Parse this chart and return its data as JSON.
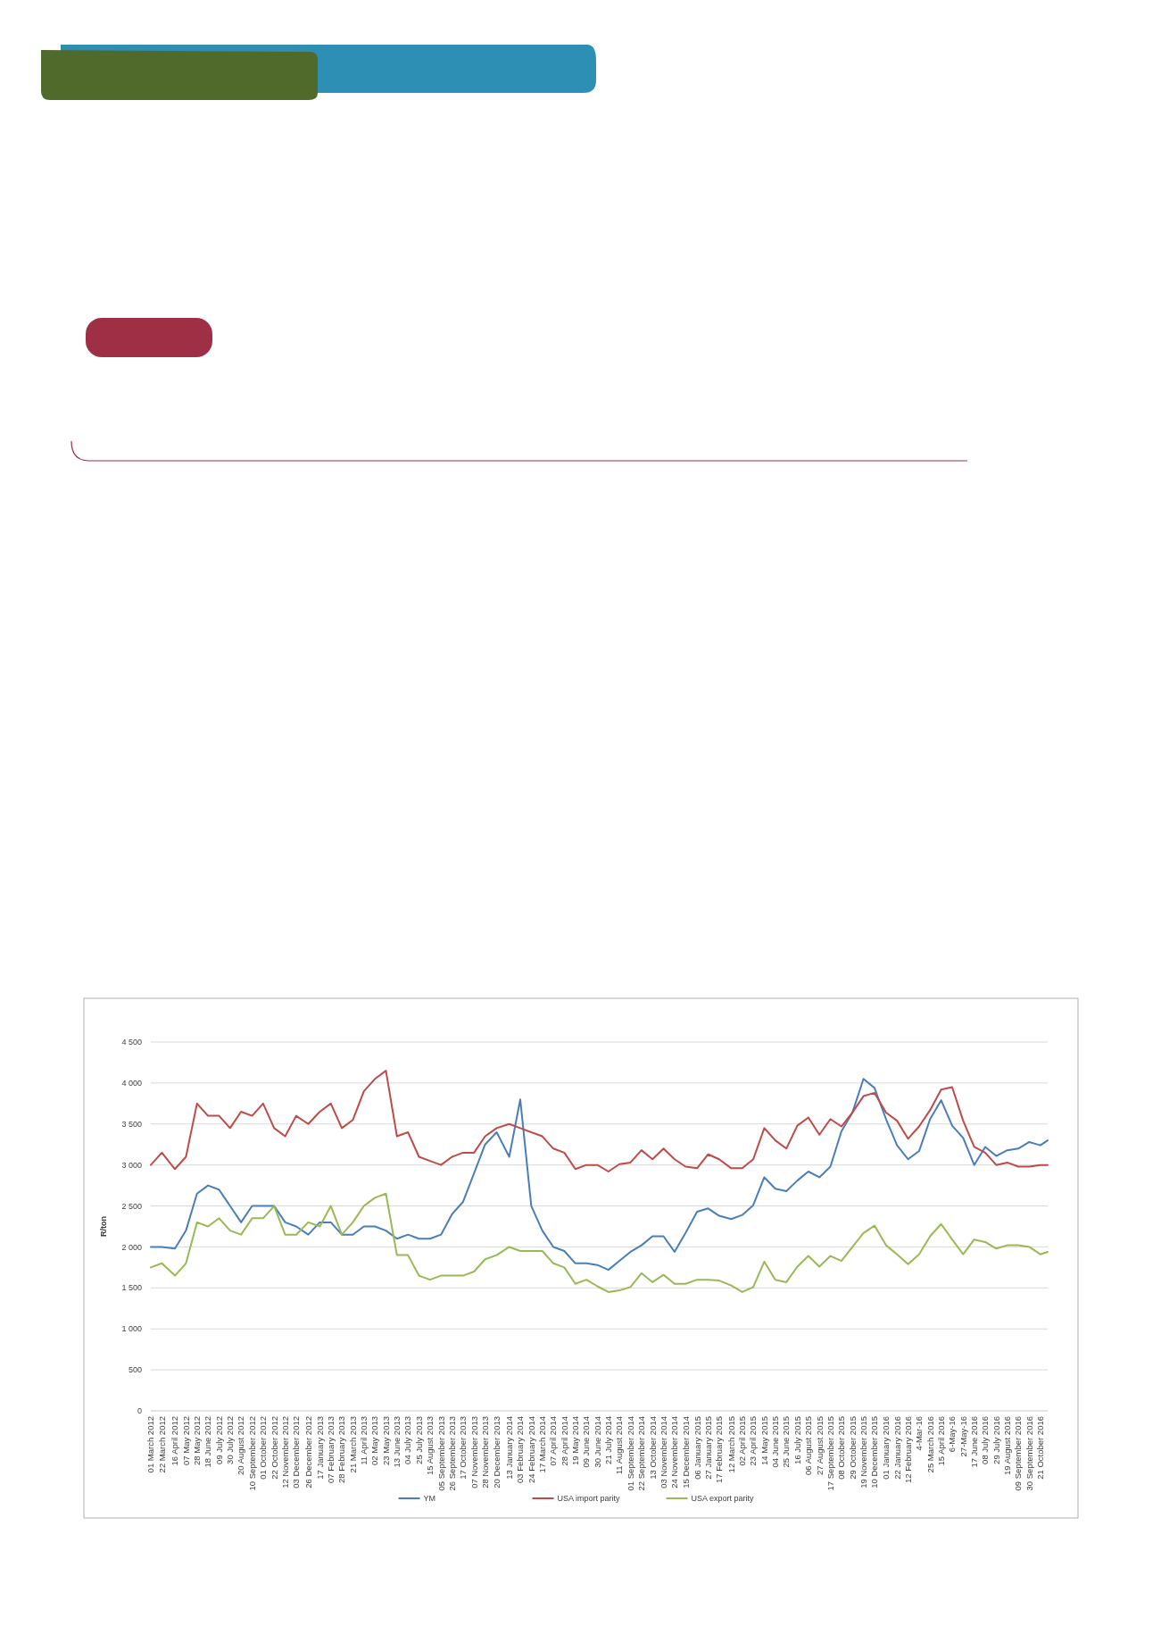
{
  "chart_data": {
    "type": "line",
    "ylabel": "R/ton",
    "x": [
      "2012-03-01",
      "2012-03-22",
      "2012-04-16",
      "2012-05-07",
      "2012-05-28",
      "2012-06-18",
      "2012-07-09",
      "2012-07-30",
      "2012-08-20",
      "2012-09-10",
      "2012-10-01",
      "2012-10-22",
      "2012-11-12",
      "2012-12-03",
      "2012-12-26",
      "2013-01-17",
      "2013-02-07",
      "2013-02-28",
      "2013-03-21",
      "2013-04-11",
      "2013-05-02",
      "2013-05-23",
      "2013-06-13",
      "2013-07-04",
      "2013-07-25",
      "2013-08-15",
      "2013-09-05",
      "2013-09-26",
      "2013-10-17",
      "2013-11-07",
      "2013-11-28",
      "2013-12-20",
      "2014-01-13",
      "2014-02-03",
      "2014-02-24",
      "2014-03-17",
      "2014-04-07",
      "2014-04-28",
      "2014-05-19",
      "2014-06-09",
      "2014-06-30",
      "2014-07-21",
      "2014-08-11",
      "2014-09-01",
      "2014-09-22",
      "2014-10-13",
      "2014-11-03",
      "2014-11-24",
      "2014-12-15",
      "2015-01-06",
      "2015-01-27",
      "2015-02-17",
      "2015-03-12",
      "2015-04-02",
      "2015-04-23",
      "2015-05-14",
      "2015-06-04",
      "2015-06-25",
      "2015-07-16",
      "2015-08-06",
      "2015-08-27",
      "2015-09-17",
      "2015-10-08",
      "2015-10-29",
      "2015-11-19",
      "2015-12-10",
      "2016-01-01",
      "2016-01-22",
      "2016-02-12",
      "2016-03-04",
      "2016-03-25",
      "2016-04-15",
      "2016-05-06",
      "2016-05-27",
      "2016-06-17",
      "2016-07-08",
      "2016-07-29",
      "2016-08-19",
      "2016-09-09",
      "2016-09-30",
      "2016-10-21",
      "2016-11-04"
    ],
    "series": [
      {
        "name": "YM",
        "color": "#4a7ebb",
        "values": [
          2000,
          2000,
          1980,
          2200,
          2650,
          2750,
          2700,
          2500,
          2300,
          2500,
          2500,
          2500,
          2300,
          2250,
          2150,
          2300,
          2300,
          2150,
          2150,
          2250,
          2250,
          2200,
          2100,
          2150,
          2100,
          2100,
          2150,
          2400,
          2550,
          2900,
          3250,
          3400,
          3100,
          3800,
          2500,
          2200,
          2000,
          1950,
          1800,
          1800,
          1780,
          1720,
          1830,
          1940,
          2020,
          2130,
          2130,
          1940,
          2170,
          2430,
          2470,
          2380,
          2340,
          2390,
          2510,
          2850,
          2710,
          2680,
          2810,
          2920,
          2850,
          2980,
          3410,
          3640,
          4050,
          3940,
          3560,
          3240,
          3070,
          3170,
          3560,
          3790,
          3480,
          3330,
          3000,
          3220,
          3110,
          3180,
          3200,
          3280,
          3240,
          3300
        ]
      },
      {
        "name": "USA import parity",
        "color": "#be4b48",
        "values": [
          3000,
          3150,
          2950,
          3100,
          3750,
          3600,
          3600,
          3450,
          3650,
          3600,
          3750,
          3450,
          3350,
          3600,
          3500,
          3650,
          3750,
          3450,
          3550,
          3900,
          4050,
          4150,
          3350,
          3400,
          3100,
          3050,
          3000,
          3100,
          3150,
          3150,
          3350,
          3450,
          3500,
          3450,
          3400,
          3350,
          3200,
          3150,
          2950,
          3000,
          3000,
          2920,
          3010,
          3030,
          3180,
          3070,
          3200,
          3070,
          2980,
          2960,
          3130,
          3070,
          2960,
          2960,
          3070,
          3450,
          3300,
          3200,
          3480,
          3580,
          3370,
          3560,
          3470,
          3640,
          3840,
          3880,
          3640,
          3540,
          3320,
          3470,
          3670,
          3920,
          3950,
          3540,
          3220,
          3150,
          3000,
          3030,
          2980,
          2980,
          3000,
          3000
        ]
      },
      {
        "name": "USA export parity",
        "color": "#98b954",
        "values": [
          1750,
          1800,
          1650,
          1800,
          2300,
          2250,
          2350,
          2200,
          2150,
          2350,
          2350,
          2500,
          2150,
          2150,
          2300,
          2250,
          2500,
          2150,
          2300,
          2500,
          2600,
          2650,
          1900,
          1900,
          1650,
          1600,
          1650,
          1650,
          1650,
          1700,
          1850,
          1900,
          2000,
          1950,
          1950,
          1950,
          1800,
          1750,
          1550,
          1600,
          1520,
          1450,
          1470,
          1510,
          1680,
          1570,
          1660,
          1550,
          1550,
          1600,
          1600,
          1590,
          1530,
          1450,
          1510,
          1820,
          1600,
          1570,
          1760,
          1890,
          1760,
          1890,
          1830,
          2000,
          2170,
          2260,
          2020,
          1910,
          1790,
          1910,
          2130,
          2280,
          2090,
          1910,
          2090,
          2060,
          1980,
          2020,
          2020,
          2000,
          1910,
          1940
        ]
      }
    ],
    "xlim": [
      "2012-03-01",
      "2016-11-04"
    ],
    "xticks": [
      {
        "value": "2012-03-01",
        "label": "01 March 2012"
      },
      {
        "value": "2012-03-22",
        "label": "22 March 2012"
      },
      {
        "value": "2012-04-16",
        "label": "16 April 2012"
      },
      {
        "value": "2012-05-07",
        "label": "07 May 2012"
      },
      {
        "value": "2012-05-28",
        "label": "28 May 2012"
      },
      {
        "value": "2012-06-18",
        "label": "18 June 2012"
      },
      {
        "value": "2012-07-09",
        "label": "09 July 2012"
      },
      {
        "value": "2012-07-30",
        "label": "30 July 2012"
      },
      {
        "value": "2012-08-20",
        "label": "20 August 2012"
      },
      {
        "value": "2012-09-10",
        "label": "10 September 2012"
      },
      {
        "value": "2012-10-01",
        "label": "01 October 2012"
      },
      {
        "value": "2012-10-22",
        "label": "22 October 2012"
      },
      {
        "value": "2012-11-12",
        "label": "12 November 2012"
      },
      {
        "value": "2012-12-03",
        "label": "03 December 2012"
      },
      {
        "value": "2012-12-26",
        "label": "26 December 2012"
      },
      {
        "value": "2013-01-17",
        "label": "17 January 2013"
      },
      {
        "value": "2013-02-07",
        "label": "07 February 2013"
      },
      {
        "value": "2013-02-28",
        "label": "28 February 2013"
      },
      {
        "value": "2013-03-21",
        "label": "21 March 2013"
      },
      {
        "value": "2013-04-11",
        "label": "11 April 2013"
      },
      {
        "value": "2013-05-02",
        "label": "02 May 2013"
      },
      {
        "value": "2013-05-23",
        "label": "23 May 2013"
      },
      {
        "value": "2013-06-13",
        "label": "13 June 2013"
      },
      {
        "value": "2013-07-04",
        "label": "04 July 2013"
      },
      {
        "value": "2013-07-25",
        "label": "25 July 2013"
      },
      {
        "value": "2013-08-15",
        "label": "15 August 2013"
      },
      {
        "value": "2013-09-05",
        "label": "05 September 2013"
      },
      {
        "value": "2013-09-26",
        "label": "26 September 2013"
      },
      {
        "value": "2013-10-17",
        "label": "17 October 2013"
      },
      {
        "value": "2013-11-07",
        "label": "07 November 2013"
      },
      {
        "value": "2013-11-28",
        "label": "28 November 2013"
      },
      {
        "value": "2013-12-20",
        "label": "20 December 2013"
      },
      {
        "value": "2014-01-13",
        "label": "13 January 2014"
      },
      {
        "value": "2014-02-03",
        "label": "03 February 2014"
      },
      {
        "value": "2014-02-24",
        "label": "24 February 2014"
      },
      {
        "value": "2014-03-17",
        "label": "17 March 2014"
      },
      {
        "value": "2014-04-07",
        "label": "07 April 2014"
      },
      {
        "value": "2014-04-28",
        "label": "28 April 2014"
      },
      {
        "value": "2014-05-19",
        "label": "19 May 2014"
      },
      {
        "value": "2014-06-09",
        "label": "09 June 2014"
      },
      {
        "value": "2014-06-30",
        "label": "30 June 2014"
      },
      {
        "value": "2014-07-21",
        "label": "21 July 2014"
      },
      {
        "value": "2014-08-11",
        "label": "11 August 2014"
      },
      {
        "value": "2014-09-01",
        "label": "01 September 2014"
      },
      {
        "value": "2014-09-22",
        "label": "22 September 2014"
      },
      {
        "value": "2014-10-13",
        "label": "13 October 2014"
      },
      {
        "value": "2014-11-03",
        "label": "03 November 2014"
      },
      {
        "value": "2014-11-24",
        "label": "24 November 2014"
      },
      {
        "value": "2014-12-15",
        "label": "15 December 2014"
      },
      {
        "value": "2015-01-06",
        "label": "06 January 2015"
      },
      {
        "value": "2015-01-27",
        "label": "27 January 2015"
      },
      {
        "value": "2015-02-17",
        "label": "17 February 2015"
      },
      {
        "value": "2015-03-12",
        "label": "12 March 2015"
      },
      {
        "value": "2015-04-02",
        "label": "02 April 2015"
      },
      {
        "value": "2015-04-23",
        "label": "23 April 2015"
      },
      {
        "value": "2015-05-14",
        "label": "14 May 2015"
      },
      {
        "value": "2015-06-04",
        "label": "04 June 2015"
      },
      {
        "value": "2015-06-25",
        "label": "25 June 2015"
      },
      {
        "value": "2015-07-16",
        "label": "16 July 2015"
      },
      {
        "value": "2015-08-06",
        "label": "06 August 2015"
      },
      {
        "value": "2015-08-27",
        "label": "27 August 2015"
      },
      {
        "value": "2015-09-17",
        "label": "17 September 2015"
      },
      {
        "value": "2015-10-08",
        "label": "08 October 2015"
      },
      {
        "value": "2015-10-29",
        "label": "29 October 2015"
      },
      {
        "value": "2015-11-19",
        "label": "19 November 2015"
      },
      {
        "value": "2015-12-10",
        "label": "10 December 2015"
      },
      {
        "value": "2016-01-01",
        "label": "01 January 2016"
      },
      {
        "value": "2016-01-22",
        "label": "22 January 2016"
      },
      {
        "value": "2016-02-12",
        "label": "12 February 2016"
      },
      {
        "value": "2016-03-04",
        "label": "4-Mar-16"
      },
      {
        "value": "2016-03-25",
        "label": "25 March 2016"
      },
      {
        "value": "2016-04-15",
        "label": "15 April 2016"
      },
      {
        "value": "2016-05-06",
        "label": "6-May-16"
      },
      {
        "value": "2016-05-27",
        "label": "27-May-16"
      },
      {
        "value": "2016-06-17",
        "label": "17 June 2016"
      },
      {
        "value": "2016-07-08",
        "label": "08 July 2016"
      },
      {
        "value": "2016-07-29",
        "label": "29 July 2016"
      },
      {
        "value": "2016-08-19",
        "label": "19 August 2016"
      },
      {
        "value": "2016-09-09",
        "label": "09 September 2016"
      },
      {
        "value": "2016-09-30",
        "label": "30 September 2016"
      },
      {
        "value": "2016-10-21",
        "label": "21 October 2016"
      }
    ],
    "ylim": [
      0,
      4500
    ],
    "yticks": [
      0,
      500,
      {
        "value": 1000,
        "label": "1 000"
      },
      {
        "value": 1500,
        "label": "1 500"
      },
      {
        "value": 2000,
        "label": "2 000"
      },
      {
        "value": 2500,
        "label": "2 500"
      },
      {
        "value": 3000,
        "label": "3 000"
      },
      {
        "value": 3500,
        "label": "3 500"
      },
      {
        "value": 4000,
        "label": "4 000"
      },
      {
        "value": 4500,
        "label": "4 500"
      }
    ],
    "grid": "y",
    "legend": "bottom",
    "marker": "none",
    "line_style": "solid"
  }
}
